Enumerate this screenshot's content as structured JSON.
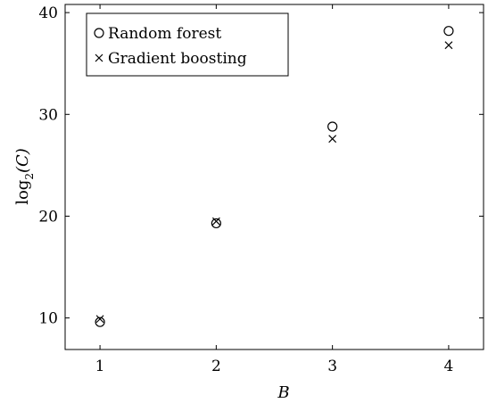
{
  "chart_data": {
    "type": "scatter",
    "x": [
      1,
      2,
      3,
      4
    ],
    "series": [
      {
        "name": "Random forest",
        "marker": "circle",
        "values": [
          9.6,
          19.3,
          28.8,
          38.2
        ]
      },
      {
        "name": "Gradient boosting",
        "marker": "cross",
        "values": [
          9.9,
          19.5,
          27.6,
          36.8
        ]
      }
    ],
    "xlabel": "B",
    "ylabel": {
      "base": "log",
      "sub": "2",
      "arg": "(C)"
    },
    "xlim": [
      0.7,
      4.3
    ],
    "ylim": [
      6.9,
      40.8
    ],
    "xticks": [
      1,
      2,
      3,
      4
    ],
    "yticks": [
      10,
      20,
      30,
      40
    ],
    "xtick_labels": [
      "1",
      "2",
      "3",
      "4"
    ],
    "ytick_labels": [
      "10",
      "20",
      "30",
      "40"
    ],
    "grid": false,
    "legend_position": "top-left",
    "colors": {
      "marker": "#000000",
      "axis": "#000000"
    }
  }
}
